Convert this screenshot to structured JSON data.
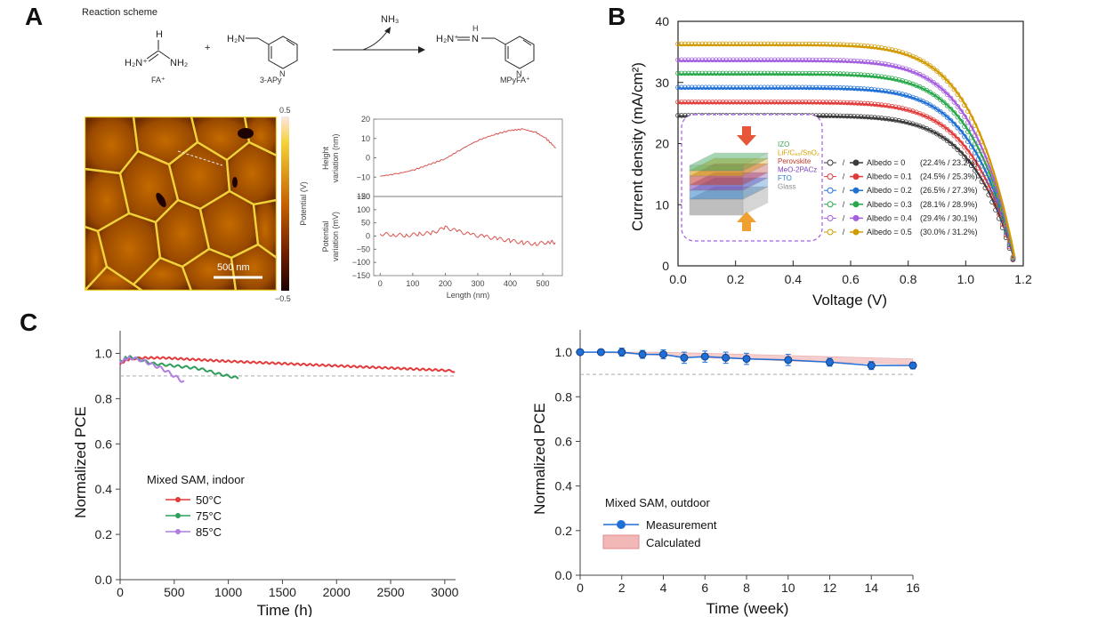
{
  "panels": {
    "A": "A",
    "B": "B",
    "C": "C"
  },
  "scheme": {
    "title": "Reaction scheme",
    "fa_formula_left": "H₂N⁺",
    "fa_formula_right": "NH₂",
    "fa_h": "H",
    "fa_name": "FA⁺",
    "plus": "+",
    "apy_amine": "H₂N",
    "apy_n": "N",
    "apy_name": "3-APy",
    "byproduct": "NH₃",
    "product_left": "H₂N⁺",
    "product_nh": "N",
    "product_h": "H",
    "product_n": "N",
    "product_name": "MPyFA⁺"
  },
  "kpfm": {
    "scalebar": "500 nm",
    "colorbar_max": "0.5",
    "colorbar_min": "−0.5",
    "colorbar_label": "Potential (V)",
    "colors": {
      "low": "#2a0400",
      "mid": "#b85a00",
      "high": "#f2dc3a"
    }
  },
  "profile": {
    "xlabel": "Length (nm)",
    "top_ylabel_1": "Height",
    "top_ylabel_2": "variation (nm)",
    "bottom_ylabel_1": "Potential",
    "bottom_ylabel_2": "variation (mV)",
    "line_color": "#d9534f"
  },
  "chart_data": [
    {
      "type": "line",
      "id": "height-profile",
      "xlabel": "Length (nm)",
      "ylabel": "Height variation (nm)",
      "xlim": [
        -20,
        560
      ],
      "ylim": [
        -20,
        20
      ],
      "xticks": [
        0,
        100,
        200,
        300,
        400,
        500
      ],
      "yticks": [
        -20,
        -10,
        0,
        10,
        20
      ],
      "series": [
        {
          "x": [
            0,
            50,
            100,
            150,
            200,
            250,
            300,
            350,
            400,
            440,
            480,
            510,
            540
          ],
          "y": [
            -9.5,
            -8.3,
            -6.5,
            -3.5,
            -0.5,
            4.5,
            9,
            12,
            14.2,
            14.8,
            13,
            10,
            5
          ]
        }
      ]
    },
    {
      "type": "line",
      "id": "potential-profile",
      "xlabel": "Length (nm)",
      "ylabel": "Potential variation (mV)",
      "xlim": [
        -20,
        560
      ],
      "ylim": [
        -150,
        150
      ],
      "xticks": [
        0,
        100,
        200,
        300,
        400,
        500
      ],
      "yticks": [
        -150,
        -100,
        -50,
        0,
        50,
        100,
        150
      ],
      "series": [
        {
          "x": [
            0,
            40,
            80,
            120,
            160,
            200,
            240,
            280,
            320,
            360,
            400,
            440,
            480,
            520,
            540
          ],
          "y": [
            8,
            5,
            2,
            8,
            12,
            32,
            18,
            5,
            -2,
            -10,
            -18,
            -25,
            -30,
            -22,
            -25
          ]
        }
      ]
    },
    {
      "type": "line",
      "id": "jv-curves",
      "xlabel": "Voltage (V)",
      "ylabel": "Current density (mA/cm²)",
      "xlim": [
        0,
        1.2
      ],
      "ylim": [
        0,
        40
      ],
      "xticks": [
        0.0,
        0.2,
        0.4,
        0.6,
        0.8,
        1.0,
        1.2
      ],
      "yticks": [
        0,
        10,
        20,
        30,
        40
      ],
      "voc": 1.17,
      "n": 8,
      "series": [
        {
          "name": "Albedo = 0",
          "jsc": 24.6,
          "pce": "(22.4% / 23.2%)",
          "color": "#3a3a3a"
        },
        {
          "name": "Albedo = 0.1",
          "jsc": 26.8,
          "pce": "(24.5% / 25.3%)",
          "color": "#e23b3b"
        },
        {
          "name": "Albedo = 0.2",
          "jsc": 29.2,
          "pce": "(26.5% / 27.3%)",
          "color": "#1f6fd6"
        },
        {
          "name": "Albedo = 0.3",
          "jsc": 31.5,
          "pce": "(28.1% / 28.9%)",
          "color": "#27a84a"
        },
        {
          "name": "Albedo = 0.4",
          "jsc": 33.7,
          "pce": "(29.4% / 30.1%)",
          "color": "#a45ee0"
        },
        {
          "name": "Albedo = 0.5",
          "jsc": 36.3,
          "pce": "(30.0% / 31.2%)",
          "color": "#d19a00"
        }
      ],
      "legend_sep": "/",
      "inset_layers": [
        "IZO",
        "LiF/C₆₀/SnO₂",
        "Perovskite",
        "MeO-2PACz",
        "FTO",
        "Glass"
      ],
      "inset_colors": [
        "#3aa655",
        "#d8a000",
        "#c0392b",
        "#7b3fb8",
        "#2f80c9",
        "#8a8a8a"
      ]
    },
    {
      "type": "line",
      "id": "indoor-stability",
      "xlabel": "Time (h)",
      "ylabel": "Normalized PCE",
      "xlim": [
        0,
        3100
      ],
      "ylim": [
        0,
        1.1
      ],
      "xticks": [
        0,
        500,
        1000,
        1500,
        2000,
        2500,
        3000
      ],
      "yticks": [
        0.0,
        0.2,
        0.4,
        0.6,
        0.8,
        1.0
      ],
      "reference": 0.9,
      "legend_title": "Mixed SAM, indoor",
      "series": [
        {
          "name": "50°C",
          "color": "#e23b3b",
          "x": [
            0,
            50,
            100,
            200,
            400,
            600,
            1000,
            1500,
            2000,
            2500,
            3000,
            3100
          ],
          "y": [
            0.95,
            0.97,
            0.975,
            0.98,
            0.98,
            0.975,
            0.965,
            0.955,
            0.945,
            0.935,
            0.925,
            0.92
          ]
        },
        {
          "name": "75°C",
          "color": "#2e9e5a",
          "x": [
            0,
            50,
            100,
            200,
            300,
            400,
            500,
            600,
            700,
            800,
            900,
            1000,
            1100
          ],
          "y": [
            0.96,
            0.98,
            0.985,
            0.97,
            0.955,
            0.95,
            0.945,
            0.94,
            0.935,
            0.925,
            0.91,
            0.9,
            0.89
          ]
        },
        {
          "name": "85°C",
          "color": "#b07de0",
          "x": [
            0,
            50,
            100,
            200,
            300,
            400,
            500,
            600
          ],
          "y": [
            0.96,
            0.975,
            0.98,
            0.97,
            0.95,
            0.93,
            0.9,
            0.87
          ]
        }
      ]
    },
    {
      "type": "line",
      "id": "outdoor-stability",
      "xlabel": "Time (week)",
      "ylabel": "Normalized PCE",
      "xlim": [
        0,
        16
      ],
      "ylim": [
        0,
        1.1
      ],
      "xticks": [
        0,
        2,
        4,
        6,
        8,
        10,
        12,
        14,
        16
      ],
      "yticks": [
        0.0,
        0.2,
        0.4,
        0.6,
        0.8,
        1.0
      ],
      "reference": 0.9,
      "legend_title": "Mixed SAM, outdoor",
      "series": [
        {
          "name": "Measurement",
          "color": "#1f6fd6",
          "x": [
            0,
            1,
            2,
            3,
            4,
            5,
            6,
            7,
            8,
            10,
            12,
            14,
            16
          ],
          "y": [
            1.0,
            1.0,
            1.0,
            0.99,
            0.99,
            0.975,
            0.98,
            0.975,
            0.97,
            0.965,
            0.955,
            0.94,
            0.94
          ],
          "err": [
            0.005,
            0.012,
            0.018,
            0.018,
            0.02,
            0.025,
            0.025,
            0.025,
            0.025,
            0.025,
            0.018,
            0.018,
            0.015
          ]
        },
        {
          "name": "Calculated",
          "color": "#f2b8b8",
          "x": [
            0,
            2,
            4,
            6,
            8,
            10,
            12,
            14,
            16
          ],
          "lower": [
            1.0,
            0.995,
            0.985,
            0.975,
            0.968,
            0.96,
            0.955,
            0.95,
            0.945
          ],
          "upper": [
            1.0,
            1.0,
            1.0,
            0.995,
            0.99,
            0.985,
            0.98,
            0.975,
            0.97
          ]
        }
      ]
    }
  ]
}
